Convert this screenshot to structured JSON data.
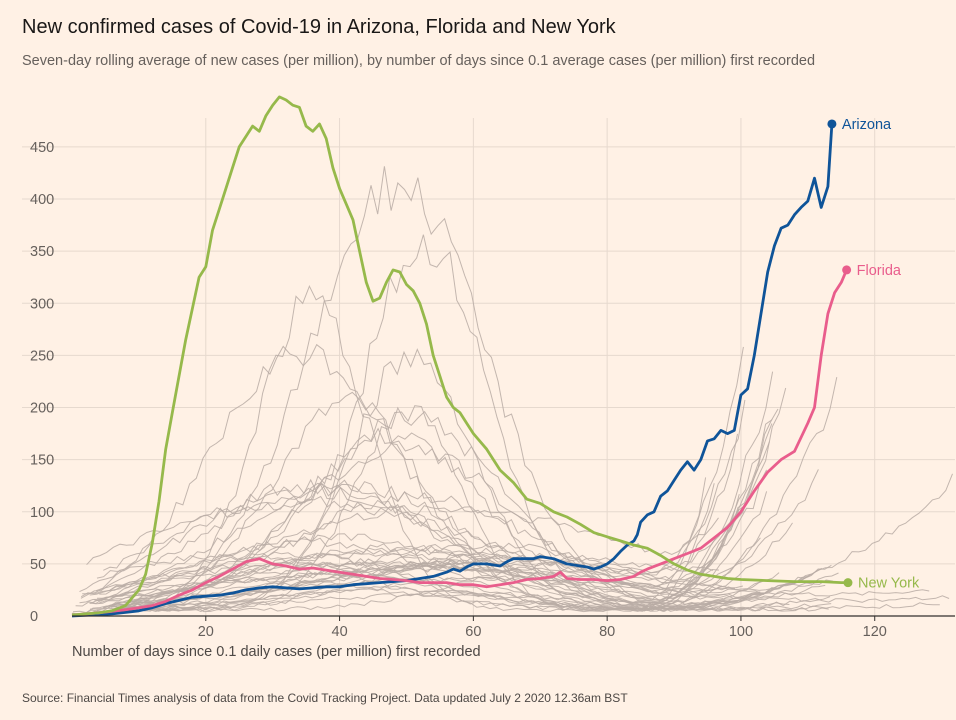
{
  "title": "New confirmed cases of Covid-19 in Arizona, Florida and New York",
  "subtitle": "Seven-day rolling average of new cases (per million), by number of days since 0.1 average cases (per million) first recorded",
  "source": "Source: Financial Times analysis of data from the Covid Tracking Project. Data updated July 2 2020 12.36am BST",
  "chart_data": {
    "type": "line",
    "xlabel": "Number of days since 0.1 daily cases (per million) first recorded",
    "ylabel": "",
    "xlim": [
      0,
      132
    ],
    "ylim": [
      0,
      495
    ],
    "x_ticks": [
      20,
      40,
      60,
      80,
      100,
      120
    ],
    "y_ticks": [
      0,
      50,
      100,
      150,
      200,
      250,
      300,
      350,
      400,
      450
    ],
    "grid": true,
    "colors": {
      "background": "#fff1e5",
      "arizona": "#0f5499",
      "florida": "#e95d8c",
      "new_york": "#96b94b",
      "other_states": "#b8aca4",
      "grid": "#e6d9ce",
      "axis": "#33302e"
    },
    "series": [
      {
        "name": "Arizona",
        "color": "#0f5499",
        "points": [
          [
            0,
            0
          ],
          [
            6,
            2
          ],
          [
            10,
            5
          ],
          [
            12,
            8
          ],
          [
            14,
            12
          ],
          [
            16,
            15
          ],
          [
            18,
            18
          ],
          [
            20,
            19
          ],
          [
            22,
            20
          ],
          [
            24,
            22
          ],
          [
            26,
            25
          ],
          [
            28,
            27
          ],
          [
            30,
            28
          ],
          [
            32,
            27
          ],
          [
            34,
            26
          ],
          [
            36,
            27
          ],
          [
            38,
            28
          ],
          [
            40,
            28
          ],
          [
            42,
            30
          ],
          [
            44,
            31
          ],
          [
            46,
            32
          ],
          [
            48,
            33
          ],
          [
            50,
            34
          ],
          [
            52,
            36
          ],
          [
            54,
            38
          ],
          [
            56,
            42
          ],
          [
            57,
            45
          ],
          [
            58,
            43
          ],
          [
            59,
            47
          ],
          [
            60,
            50
          ],
          [
            62,
            50
          ],
          [
            64,
            48
          ],
          [
            65,
            52
          ],
          [
            66,
            55
          ],
          [
            68,
            55
          ],
          [
            69,
            55
          ],
          [
            70,
            57
          ],
          [
            72,
            55
          ],
          [
            74,
            50
          ],
          [
            76,
            48
          ],
          [
            77,
            47
          ],
          [
            78,
            45
          ],
          [
            79,
            47
          ],
          [
            80,
            50
          ],
          [
            81,
            55
          ],
          [
            82,
            62
          ],
          [
            83,
            68
          ],
          [
            84,
            72
          ],
          [
            84.5,
            78
          ],
          [
            85,
            90
          ],
          [
            86,
            97
          ],
          [
            87,
            100
          ],
          [
            88,
            115
          ],
          [
            89,
            120
          ],
          [
            90,
            130
          ],
          [
            91,
            140
          ],
          [
            92,
            148
          ],
          [
            93,
            140
          ],
          [
            94,
            150
          ],
          [
            95,
            168
          ],
          [
            96,
            170
          ],
          [
            97,
            178
          ],
          [
            98,
            175
          ],
          [
            99,
            178
          ],
          [
            100,
            212
          ],
          [
            101,
            218
          ],
          [
            102,
            250
          ],
          [
            103,
            290
          ],
          [
            104,
            330
          ],
          [
            105,
            355
          ],
          [
            106,
            372
          ],
          [
            107,
            375
          ],
          [
            108,
            385
          ],
          [
            109,
            392
          ],
          [
            110,
            398
          ],
          [
            111,
            420
          ],
          [
            112,
            392
          ],
          [
            113,
            412
          ],
          [
            113.6,
            472
          ]
        ],
        "end_label": "Arizona"
      },
      {
        "name": "Florida",
        "color": "#e95d8c",
        "points": [
          [
            0,
            1
          ],
          [
            4,
            3
          ],
          [
            8,
            6
          ],
          [
            10,
            8
          ],
          [
            12,
            10
          ],
          [
            14,
            14
          ],
          [
            16,
            20
          ],
          [
            18,
            25
          ],
          [
            20,
            32
          ],
          [
            22,
            38
          ],
          [
            24,
            45
          ],
          [
            26,
            52
          ],
          [
            28,
            55
          ],
          [
            30,
            50
          ],
          [
            32,
            48
          ],
          [
            34,
            45
          ],
          [
            36,
            46
          ],
          [
            38,
            44
          ],
          [
            40,
            42
          ],
          [
            42,
            40
          ],
          [
            44,
            38
          ],
          [
            46,
            36
          ],
          [
            48,
            35
          ],
          [
            50,
            34
          ],
          [
            52,
            32
          ],
          [
            54,
            32
          ],
          [
            56,
            32
          ],
          [
            58,
            30
          ],
          [
            60,
            30
          ],
          [
            62,
            28
          ],
          [
            64,
            30
          ],
          [
            66,
            32
          ],
          [
            68,
            35
          ],
          [
            70,
            36
          ],
          [
            72,
            38
          ],
          [
            73,
            42
          ],
          [
            74,
            36
          ],
          [
            76,
            35
          ],
          [
            78,
            35
          ],
          [
            80,
            34
          ],
          [
            82,
            35
          ],
          [
            84,
            38
          ],
          [
            85,
            42
          ],
          [
            86,
            45
          ],
          [
            88,
            50
          ],
          [
            90,
            55
          ],
          [
            92,
            60
          ],
          [
            94,
            65
          ],
          [
            96,
            75
          ],
          [
            98,
            85
          ],
          [
            100,
            100
          ],
          [
            102,
            120
          ],
          [
            104,
            138
          ],
          [
            106,
            150
          ],
          [
            108,
            158
          ],
          [
            110,
            185
          ],
          [
            111,
            200
          ],
          [
            112,
            250
          ],
          [
            113,
            290
          ],
          [
            114,
            310
          ],
          [
            115,
            320
          ],
          [
            115.8,
            332
          ]
        ],
        "end_label": "Florida"
      },
      {
        "name": "New York",
        "color": "#96b94b",
        "points": [
          [
            0,
            1
          ],
          [
            2,
            2
          ],
          [
            4,
            3
          ],
          [
            6,
            5
          ],
          [
            8,
            10
          ],
          [
            10,
            25
          ],
          [
            11,
            40
          ],
          [
            12,
            70
          ],
          [
            13,
            110
          ],
          [
            14,
            160
          ],
          [
            15,
            195
          ],
          [
            16,
            230
          ],
          [
            17,
            265
          ],
          [
            18,
            295
          ],
          [
            19,
            325
          ],
          [
            20,
            335
          ],
          [
            21,
            370
          ],
          [
            22,
            390
          ],
          [
            23,
            410
          ],
          [
            24,
            430
          ],
          [
            25,
            450
          ],
          [
            26,
            460
          ],
          [
            27,
            470
          ],
          [
            28,
            465
          ],
          [
            29,
            480
          ],
          [
            30,
            490
          ],
          [
            31,
            498
          ],
          [
            32,
            495
          ],
          [
            33,
            490
          ],
          [
            34,
            488
          ],
          [
            35,
            470
          ],
          [
            36,
            465
          ],
          [
            37,
            472
          ],
          [
            38,
            458
          ],
          [
            39,
            430
          ],
          [
            40,
            410
          ],
          [
            41,
            395
          ],
          [
            42,
            380
          ],
          [
            43,
            350
          ],
          [
            44,
            320
          ],
          [
            45,
            302
          ],
          [
            46,
            305
          ],
          [
            47,
            320
          ],
          [
            48,
            332
          ],
          [
            49,
            330
          ],
          [
            50,
            318
          ],
          [
            51,
            312
          ],
          [
            52,
            300
          ],
          [
            53,
            280
          ],
          [
            54,
            250
          ],
          [
            55,
            230
          ],
          [
            56,
            210
          ],
          [
            57,
            200
          ],
          [
            58,
            195
          ],
          [
            59,
            185
          ],
          [
            60,
            175
          ],
          [
            62,
            160
          ],
          [
            64,
            140
          ],
          [
            66,
            128
          ],
          [
            68,
            112
          ],
          [
            70,
            108
          ],
          [
            72,
            100
          ],
          [
            74,
            95
          ],
          [
            76,
            88
          ],
          [
            78,
            80
          ],
          [
            80,
            76
          ],
          [
            82,
            72
          ],
          [
            84,
            68
          ],
          [
            86,
            65
          ],
          [
            88,
            58
          ],
          [
            90,
            50
          ],
          [
            92,
            44
          ],
          [
            94,
            40
          ],
          [
            96,
            38
          ],
          [
            98,
            36
          ],
          [
            100,
            35
          ],
          [
            104,
            34
          ],
          [
            108,
            33
          ],
          [
            112,
            33
          ],
          [
            115,
            32
          ],
          [
            116,
            32
          ]
        ],
        "end_label": "New York"
      }
    ]
  }
}
